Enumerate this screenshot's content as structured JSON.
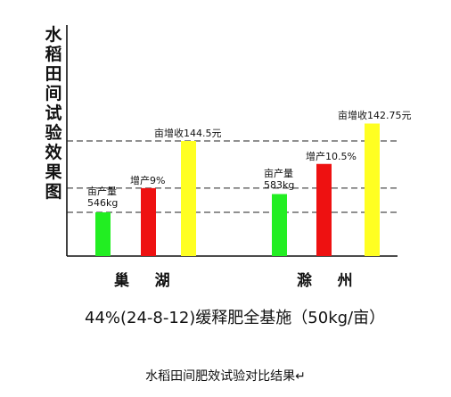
{
  "chart_data": {
    "type": "bar",
    "title": "水稻田间试验效果图",
    "subtitle": "44%(24-8-12)缓释肥全基施（50kg/亩）",
    "groups": [
      {
        "name": "巢    湖",
        "bars": [
          {
            "value": 546,
            "color": "#22ee22",
            "label_lines": [
              "亩产量",
              "546kg"
            ]
          },
          {
            "value": 595,
            "color": "#ee1111",
            "label_lines": [
              "增产9%"
            ]
          },
          {
            "value": 690.5,
            "color": "#ffff22",
            "label_lines": [
              "亩增收144.5元"
            ]
          }
        ]
      },
      {
        "name": "滁    州",
        "bars": [
          {
            "value": 583,
            "color": "#22ee22",
            "label_lines": [
              "亩产量",
              "583kg"
            ]
          },
          {
            "value": 644,
            "color": "#ee1111",
            "label_lines": [
              "增产10.5%"
            ]
          },
          {
            "value": 725.75,
            "color": "#ffff22",
            "label_lines": [
              "亩增收142.75元"
            ]
          }
        ]
      }
    ],
    "reference_lines": [
      546,
      595,
      690.5
    ],
    "grid": false
  },
  "caption": "水稻田间肥效试验对比结果↵"
}
